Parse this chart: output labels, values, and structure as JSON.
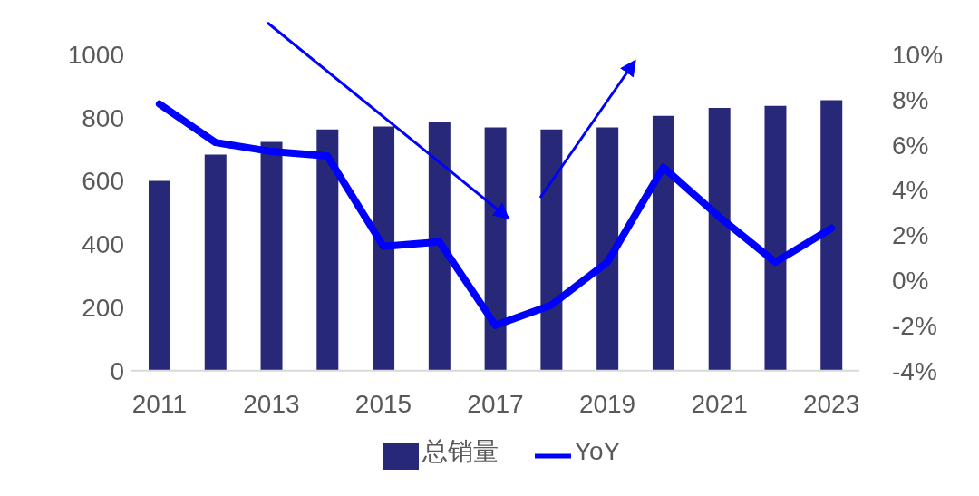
{
  "chart_data": {
    "type": "bar",
    "categories": [
      "2011",
      null,
      "2013",
      null,
      "2015",
      null,
      "2017",
      null,
      "2019",
      null,
      "2021",
      null,
      "2023"
    ],
    "series": [
      {
        "name": "总销量",
        "color": "#282878",
        "values": [
          600,
          683,
          723,
          763,
          772,
          788,
          769,
          763,
          769,
          806,
          831,
          837,
          855
        ]
      },
      {
        "name": "YoY",
        "type": "line",
        "axis": "y2",
        "color": "#0000ff",
        "values": [
          7.8,
          6.1,
          5.7,
          5.5,
          1.5,
          1.7,
          -2.0,
          -1.1,
          0.8,
          5.0,
          2.8,
          0.8,
          2.3
        ]
      }
    ],
    "ylim": [
      0,
      1000
    ],
    "yticks": [
      0,
      200,
      400,
      600,
      800,
      1000
    ],
    "y2lim": [
      -4,
      10
    ],
    "y2ticks": [
      {
        "value": -4,
        "label": "-4%"
      },
      {
        "value": -2,
        "label": "-2%"
      },
      {
        "value": 0,
        "label": "0%"
      },
      {
        "value": 2,
        "label": "2%"
      },
      {
        "value": 4,
        "label": "4%"
      },
      {
        "value": 6,
        "label": "6%"
      },
      {
        "value": 8,
        "label": "8%"
      },
      {
        "value": 10,
        "label": "10%"
      }
    ],
    "grid": false,
    "legend": "bottom",
    "marker": "none",
    "line_style": "solid"
  }
}
